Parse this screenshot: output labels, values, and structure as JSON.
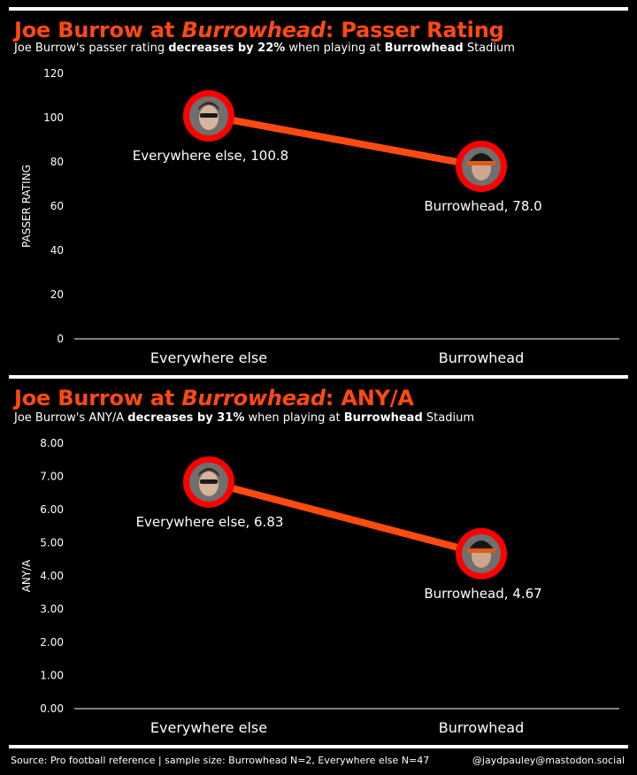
{
  "charts": [
    {
      "title_parts": {
        "prefix": "Joe Burrow at ",
        "emph": "Burrowhead",
        "suffix": ": Passer Rating"
      },
      "subtitle_parts": {
        "a": "Joe Burrow's passer rating ",
        "b": "decreases by 22%",
        "c": " when playing at ",
        "d": "Burrowhead",
        "e": " Stadium"
      }
    },
    {
      "title_parts": {
        "prefix": "Joe Burrow at ",
        "emph": "Burrowhead",
        "suffix": ": ANY/A"
      },
      "subtitle_parts": {
        "a": "Joe Burrow's ANY/A ",
        "b": "decreases by 31%",
        "c": " when playing at ",
        "d": "Burrowhead",
        "e": " Stadium"
      }
    }
  ],
  "chart_data": [
    {
      "type": "line",
      "title": "Joe Burrow at Burrowhead: Passer Rating",
      "ylabel": "PASSER RATING",
      "categories": [
        "Everywhere else",
        "Burrowhead"
      ],
      "values": [
        100.8,
        78.0
      ],
      "point_labels": [
        "Everywhere else, 100.8",
        "Burrowhead, 78.0"
      ],
      "ylim": [
        0,
        120
      ],
      "yticks": [
        "0",
        "20",
        "40",
        "60",
        "80",
        "100",
        "120"
      ],
      "ytick_values": [
        0,
        20,
        40,
        60,
        80,
        100,
        120
      ],
      "grid": false
    },
    {
      "type": "line",
      "title": "Joe Burrow at Burrowhead: ANY/A",
      "ylabel": "ANY/A",
      "categories": [
        "Everywhere else",
        "Burrowhead"
      ],
      "values": [
        6.83,
        4.67
      ],
      "point_labels": [
        "Everywhere else, 6.83",
        "Burrowhead, 4.67"
      ],
      "ylim": [
        0,
        8
      ],
      "yticks": [
        "0.00",
        "1.00",
        "2.00",
        "3.00",
        "4.00",
        "5.00",
        "6.00",
        "7.00",
        "8.00"
      ],
      "ytick_values": [
        0,
        1,
        2,
        3,
        4,
        5,
        6,
        7,
        8
      ],
      "grid": false
    }
  ],
  "colors": {
    "accent": "#ff4a10",
    "marker_ring": "#ff0000",
    "background": "#000000",
    "text": "#ffffff"
  },
  "footer": {
    "source": "Source: Pro football reference | sample size: Burrowhead N=2, Everywhere else N=47",
    "credit": "@jaydpauley@mastodon.social"
  }
}
